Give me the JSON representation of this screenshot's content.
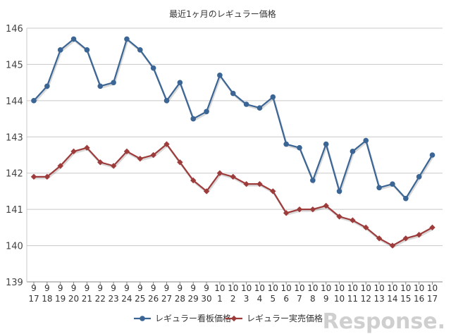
{
  "chart_data": {
    "type": "line",
    "title": "最近1ヶ月のレギュラー価格",
    "ylim": [
      139,
      146
    ],
    "yticks": [
      139,
      140,
      141,
      142,
      143,
      144,
      145,
      146
    ],
    "grid": true,
    "legend_position": "bottom",
    "categories": [
      [
        "9",
        "17"
      ],
      [
        "9",
        "18"
      ],
      [
        "9",
        "19"
      ],
      [
        "9",
        "20"
      ],
      [
        "9",
        "21"
      ],
      [
        "9",
        "22"
      ],
      [
        "9",
        "23"
      ],
      [
        "9",
        "24"
      ],
      [
        "9",
        "25"
      ],
      [
        "9",
        "26"
      ],
      [
        "9",
        "27"
      ],
      [
        "9",
        "28"
      ],
      [
        "9",
        "29"
      ],
      [
        "9",
        "30"
      ],
      [
        "10",
        "1"
      ],
      [
        "10",
        "2"
      ],
      [
        "10",
        "3"
      ],
      [
        "10",
        "4"
      ],
      [
        "10",
        "5"
      ],
      [
        "10",
        "6"
      ],
      [
        "10",
        "7"
      ],
      [
        "10",
        "8"
      ],
      [
        "10",
        "9"
      ],
      [
        "10",
        "10"
      ],
      [
        "10",
        "11"
      ],
      [
        "10",
        "12"
      ],
      [
        "10",
        "13"
      ],
      [
        "10",
        "14"
      ],
      [
        "10",
        "15"
      ],
      [
        "10",
        "16"
      ],
      [
        "10",
        "17"
      ]
    ],
    "series": [
      {
        "name": "レギュラー看板価格",
        "color": "#3a6594",
        "marker": "circle",
        "values": [
          144.0,
          144.4,
          145.4,
          145.7,
          145.4,
          144.4,
          144.5,
          145.7,
          145.4,
          144.9,
          144.0,
          144.5,
          143.5,
          143.7,
          144.7,
          144.2,
          143.9,
          143.8,
          144.1,
          142.8,
          142.7,
          141.8,
          142.8,
          141.5,
          142.6,
          142.9,
          141.6,
          141.7,
          141.3,
          141.9,
          142.5
        ]
      },
      {
        "name": "レギュラー実売価格",
        "color": "#9e3b3b",
        "marker": "diamond",
        "values": [
          141.9,
          141.9,
          142.2,
          142.6,
          142.7,
          142.3,
          142.2,
          142.6,
          142.4,
          142.5,
          142.8,
          142.3,
          141.8,
          141.5,
          142.0,
          141.9,
          141.7,
          141.7,
          141.5,
          140.9,
          141.0,
          141.0,
          141.1,
          140.8,
          140.7,
          140.5,
          140.2,
          140.0,
          140.2,
          140.3,
          140.5
        ]
      }
    ]
  },
  "watermark": {
    "text": "Response.",
    "color": "#cfcfcf"
  }
}
